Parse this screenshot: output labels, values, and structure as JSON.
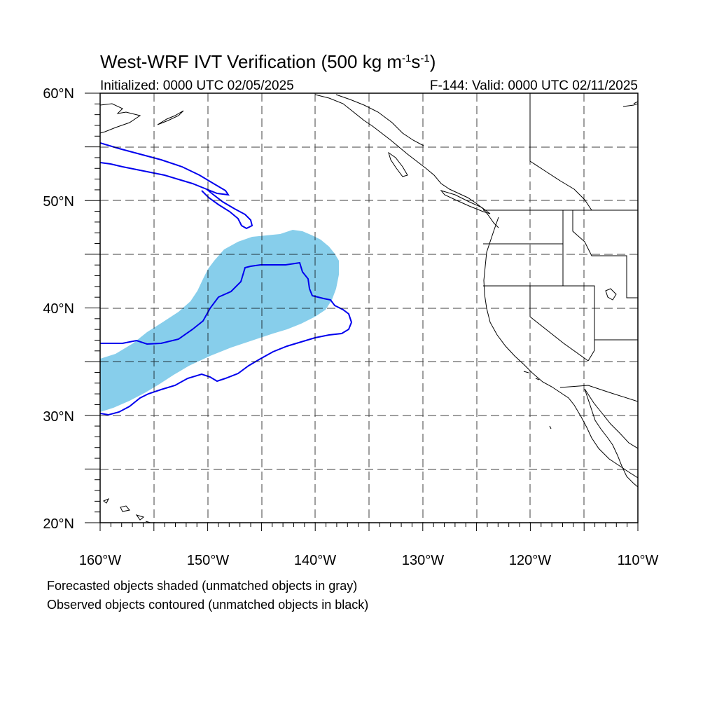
{
  "title": {
    "main": "West-WRF IVT Verification (500 kg m",
    "sup1": "-1",
    "mid": "s",
    "sup2": "-1",
    "end": ")"
  },
  "subtitle": {
    "left": "Initialized: 0000 UTC 02/05/2025",
    "right": "F-144: Valid: 0000 UTC 02/11/2025"
  },
  "axes": {
    "lon_labels": [
      "160°W",
      "150°W",
      "140°W",
      "130°W",
      "120°W",
      "110°W"
    ],
    "lat_labels": [
      "60°N",
      "50°N",
      "40°N",
      "30°N",
      "20°N"
    ],
    "lon_range": [
      -160,
      -110
    ],
    "lat_range": [
      20,
      60
    ]
  },
  "colors": {
    "forecast_fill": "#87ceeb",
    "observed_contour": "#0000ee",
    "coastline": "#000000",
    "grid": "#000000"
  },
  "footnotes": [
    "Forecasted objects shaded (unmatched objects in gray)",
    "Observed objects contoured (unmatched objects in black)"
  ]
}
